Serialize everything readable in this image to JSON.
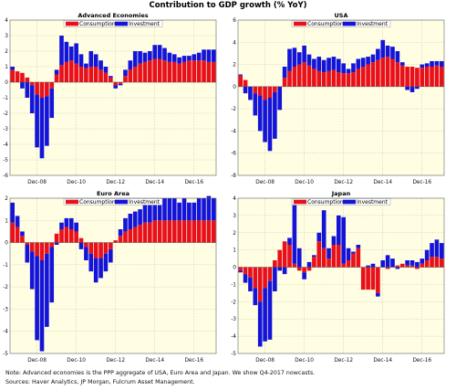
{
  "title": "Contribution to GDP growth (% YoY)",
  "colors": {
    "consumption": "#e8101a",
    "investment": "#1414d8",
    "plot_bg": "#fffde2",
    "grid": "#c9c9a8"
  },
  "notes": {
    "line1": "Note: Advanced economies is the PPP aggregate of USA, Euro Area and Japan. We show Q4-2017 nowcasts.",
    "line2": "Sources: Haver Analytics, JP Morgan, Fulcrum Asset Management."
  },
  "chart_data": [
    {
      "type": "bar",
      "stacked": true,
      "title": "Advanced Economies",
      "legend": [
        "Consumption",
        "Investment"
      ],
      "legend_position": "top",
      "grid": true,
      "ylim": [
        -6,
        4
      ],
      "yticks": [
        4,
        3,
        2,
        1,
        0,
        -1,
        -2,
        -3,
        -4,
        -5,
        -6
      ],
      "x_ticks": [
        {
          "index": 5,
          "label": "Dec-08"
        },
        {
          "index": 13,
          "label": "Dec-10"
        },
        {
          "index": 21,
          "label": "Dec-12"
        },
        {
          "index": 29,
          "label": "Dec-14"
        },
        {
          "index": 37,
          "label": "Dec-16"
        }
      ],
      "series": [
        {
          "name": "Consumption",
          "values": [
            0.8,
            0.7,
            0.6,
            0.3,
            -0.2,
            -0.8,
            -1.0,
            -0.9,
            -0.4,
            0.5,
            1.1,
            1.3,
            1.4,
            1.2,
            1.0,
            0.9,
            1.0,
            1.0,
            0.8,
            0.6,
            0.3,
            -0.2,
            -0.1,
            0.4,
            0.8,
            1.0,
            1.2,
            1.3,
            1.4,
            1.5,
            1.5,
            1.4,
            1.3,
            1.3,
            1.2,
            1.3,
            1.4,
            1.4,
            1.4,
            1.4,
            1.3,
            1.3
          ]
        },
        {
          "name": "Investment",
          "values": [
            0.2,
            0.0,
            -0.4,
            -1.0,
            -1.8,
            -3.4,
            -3.9,
            -3.2,
            -1.9,
            0.3,
            1.9,
            1.3,
            0.9,
            1.3,
            0.8,
            0.3,
            1.0,
            0.8,
            0.6,
            0.4,
            0.1,
            -0.2,
            -0.1,
            0.4,
            0.6,
            1.0,
            0.8,
            0.6,
            0.6,
            0.9,
            0.9,
            0.8,
            0.6,
            0.5,
            0.4,
            0.4,
            0.3,
            0.4,
            0.5,
            0.7,
            0.8,
            0.8
          ]
        }
      ]
    },
    {
      "type": "bar",
      "stacked": true,
      "title": "USA",
      "legend": [
        "Consumption",
        "Investment"
      ],
      "legend_position": "top",
      "grid": true,
      "ylim": [
        -8,
        6
      ],
      "yticks": [
        6,
        4,
        2,
        0,
        -2,
        -4,
        -6,
        -8
      ],
      "x_ticks": [
        {
          "index": 5,
          "label": "Dec-08"
        },
        {
          "index": 13,
          "label": "Dec-10"
        },
        {
          "index": 21,
          "label": "Dec-12"
        },
        {
          "index": 29,
          "label": "Dec-14"
        },
        {
          "index": 37,
          "label": "Dec-16"
        }
      ],
      "series": [
        {
          "name": "Consumption",
          "values": [
            1.0,
            0.6,
            0.0,
            -0.6,
            -0.8,
            -1.2,
            -1.0,
            -0.5,
            0.0,
            0.8,
            1.4,
            1.8,
            2.0,
            2.2,
            1.9,
            1.6,
            1.4,
            1.3,
            1.4,
            1.5,
            1.3,
            1.2,
            1.2,
            1.3,
            1.6,
            1.8,
            2.0,
            2.2,
            2.4,
            2.6,
            2.7,
            2.5,
            2.2,
            1.9,
            1.8,
            1.8,
            1.7,
            1.7,
            1.8,
            1.8,
            1.9,
            1.8
          ]
        },
        {
          "name": "Investment",
          "values": [
            0.1,
            -0.6,
            -1.2,
            -2.0,
            -3.2,
            -3.8,
            -4.8,
            -4.2,
            -2.1,
            1.0,
            2.0,
            1.7,
            1.1,
            1.5,
            1.0,
            0.9,
            1.3,
            1.1,
            1.2,
            1.2,
            1.2,
            0.9,
            0.4,
            0.8,
            0.9,
            0.8,
            0.7,
            0.7,
            1.0,
            1.6,
            1.0,
            1.1,
            1.0,
            0.3,
            -0.3,
            -0.5,
            -0.2,
            0.3,
            0.3,
            0.5,
            0.4,
            0.5
          ]
        }
      ]
    },
    {
      "type": "bar",
      "stacked": true,
      "title": "Euro Area",
      "legend": [
        "Consumption",
        "Investment"
      ],
      "legend_position": "top",
      "grid": true,
      "ylim": [
        -5,
        2
      ],
      "yticks": [
        2,
        1,
        0,
        -1,
        -2,
        -3,
        -4,
        -5
      ],
      "x_ticks": [
        {
          "index": 5,
          "label": "Dec-08"
        },
        {
          "index": 13,
          "label": "Dec-10"
        },
        {
          "index": 21,
          "label": "Dec-12"
        },
        {
          "index": 29,
          "label": "Dec-14"
        },
        {
          "index": 37,
          "label": "Dec-16"
        }
      ],
      "series": [
        {
          "name": "Consumption",
          "values": [
            0.9,
            0.7,
            0.3,
            -0.1,
            -0.4,
            -0.6,
            -0.8,
            -0.5,
            -0.2,
            0.4,
            0.6,
            0.7,
            0.6,
            0.5,
            0.2,
            -0.2,
            -0.5,
            -0.7,
            -0.7,
            -0.5,
            -0.3,
            0.1,
            0.3,
            0.5,
            0.6,
            0.7,
            0.8,
            0.9,
            0.9,
            1.0,
            1.0,
            1.0,
            1.0,
            1.0,
            1.0,
            1.0,
            1.0,
            1.0,
            1.0,
            1.0,
            1.0,
            1.0
          ]
        },
        {
          "name": "Investment",
          "values": [
            0.9,
            0.5,
            0.2,
            -0.8,
            -1.7,
            -3.8,
            -4.1,
            -3.3,
            -2.5,
            -0.1,
            0.3,
            0.4,
            0.5,
            0.4,
            -0.3,
            -0.6,
            -0.8,
            -1.1,
            -0.9,
            -0.8,
            -0.6,
            0.0,
            0.3,
            0.6,
            0.7,
            0.7,
            0.7,
            0.9,
            0.8,
            0.7,
            0.9,
            1.0,
            1.0,
            1.0,
            0.8,
            1.0,
            0.8,
            0.8,
            1.0,
            1.0,
            1.1,
            1.0
          ]
        }
      ]
    },
    {
      "type": "bar",
      "stacked": true,
      "title": "Japan",
      "legend": [
        "Consumption",
        "Investment"
      ],
      "legend_position": "top",
      "grid": true,
      "ylim": [
        -5,
        4
      ],
      "yticks": [
        4,
        3,
        2,
        1,
        0,
        -1,
        -2,
        -3,
        -4,
        -5
      ],
      "x_ticks": [
        {
          "index": 5,
          "label": "Dec-08"
        },
        {
          "index": 13,
          "label": "Dec-10"
        },
        {
          "index": 21,
          "label": "Dec-12"
        },
        {
          "index": 29,
          "label": "Dec-14"
        },
        {
          "index": 37,
          "label": "Dec-16"
        }
      ],
      "series": [
        {
          "name": "Consumption",
          "values": [
            -0.2,
            -0.4,
            -0.6,
            -1.2,
            -2.0,
            -1.2,
            -0.8,
            0.4,
            1.0,
            1.5,
            1.3,
            0.2,
            -0.2,
            -0.3,
            -0.2,
            0.6,
            1.5,
            1.1,
            0.5,
            1.3,
            1.3,
            0.2,
            0.4,
            0.8,
            1.1,
            -1.3,
            -1.3,
            -1.3,
            -1.5,
            0.0,
            -0.1,
            0.0,
            0.1,
            0.2,
            0.1,
            0.1,
            -0.1,
            0.2,
            0.4,
            0.6,
            0.6,
            0.5
          ]
        },
        {
          "name": "Investment",
          "values": [
            -0.1,
            -0.5,
            -0.8,
            -1.0,
            -2.6,
            -3.1,
            -3.4,
            -1.4,
            -0.2,
            -0.4,
            0.4,
            3.6,
            1.1,
            -0.4,
            0.3,
            0.1,
            0.5,
            2.2,
            0.6,
            0.5,
            1.7,
            2.7,
            0.7,
            0.1,
            0.2,
            0.0,
            0.1,
            0.2,
            -0.2,
            0.4,
            0.7,
            0.5,
            -0.1,
            0.0,
            0.3,
            0.3,
            0.3,
            0.3,
            0.6,
            0.8,
            1.0,
            0.9
          ]
        }
      ]
    }
  ]
}
